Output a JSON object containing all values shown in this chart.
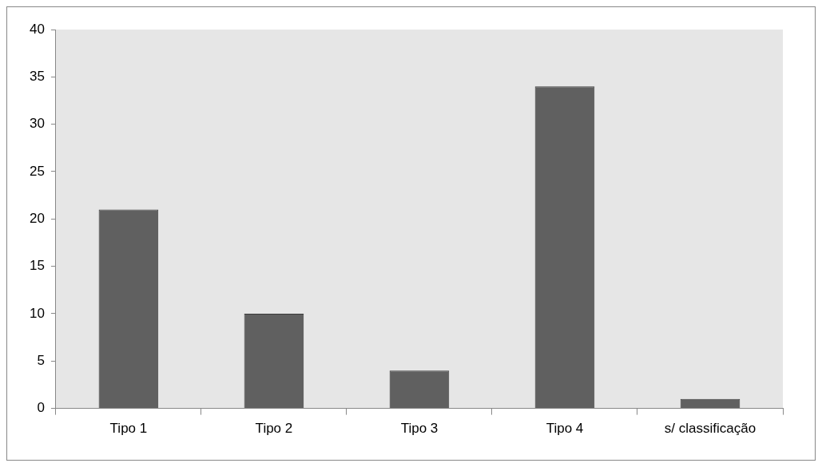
{
  "chart_data": {
    "type": "bar",
    "categories": [
      "Tipo 1",
      "Tipo 2",
      "Tipo 3",
      "Tipo 4",
      "s/ classificação"
    ],
    "values": [
      21,
      10,
      4,
      34,
      1
    ],
    "color": "#606060",
    "ylim": [
      0,
      40
    ],
    "yticks": [
      0,
      5,
      10,
      15,
      20,
      25,
      30,
      35,
      40
    ],
    "grid": false,
    "legend": false
  }
}
